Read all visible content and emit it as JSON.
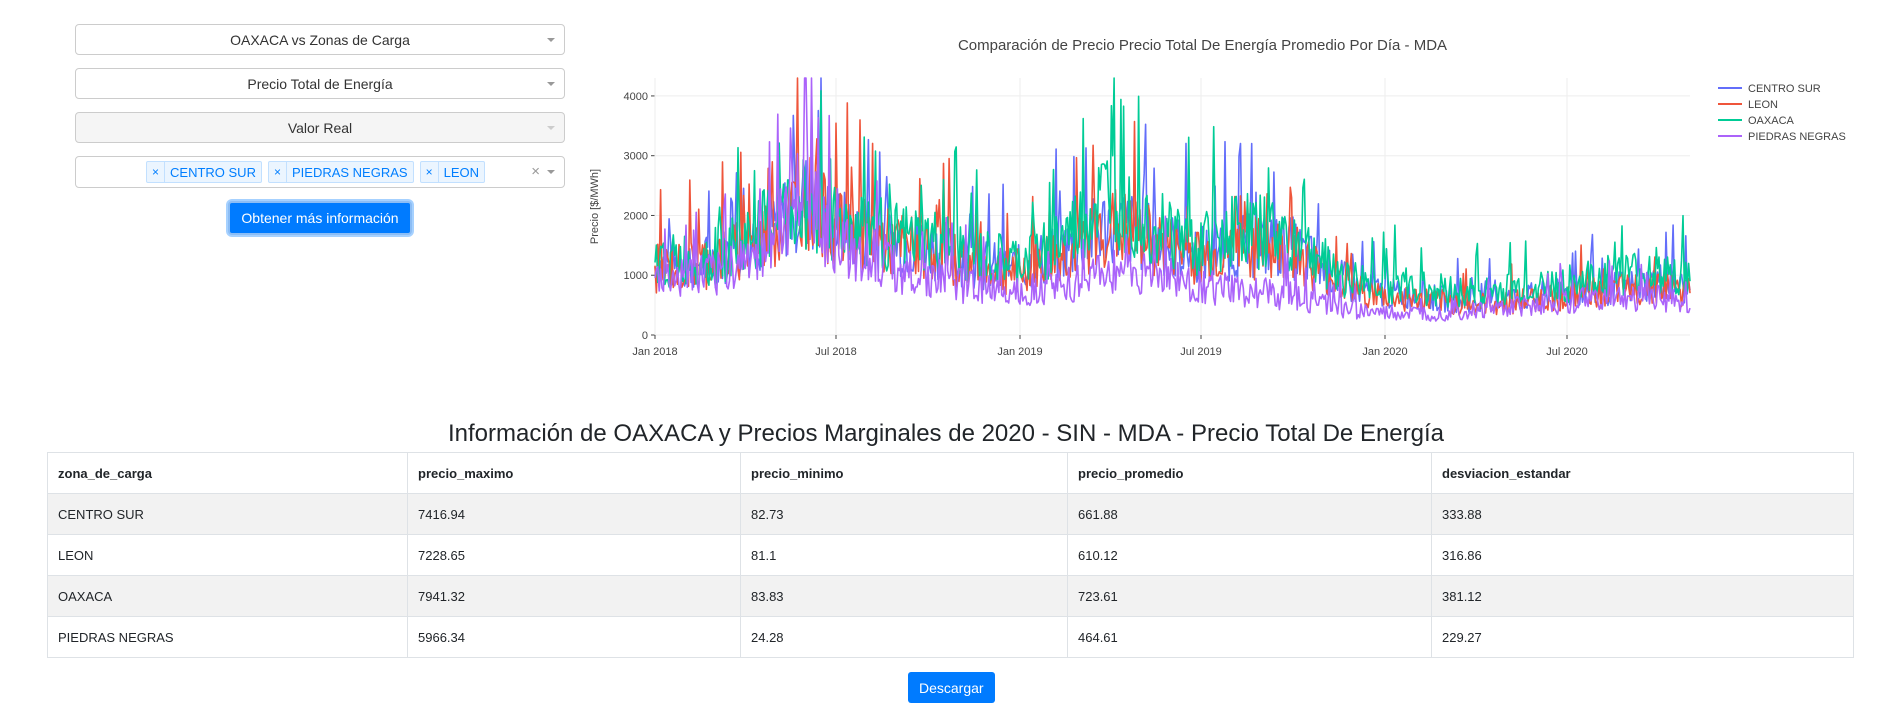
{
  "controls": {
    "region_select": "OAXACA vs Zonas de Carga",
    "price_select": "Precio Total de Energía",
    "value_select": "Valor Real",
    "zones": [
      "CENTRO SUR",
      "PIEDRAS NEGRAS",
      "LEON"
    ],
    "remove_glyph": "×",
    "clear_glyph": "×",
    "submit_label": "Obtener más información"
  },
  "chart_data": {
    "type": "line",
    "title": "Comparación de Precio Precio Total  De Energía Promedio Por Día - MDA",
    "xlabel": "",
    "ylabel": "Precio [$/MWh]",
    "x_range": [
      "2018-01-01",
      "2020-11-01"
    ],
    "x_ticks": [
      "Jan 2018",
      "Jul 2018",
      "Jan 2019",
      "Jul 2019",
      "Jan 2020",
      "Jul 2020"
    ],
    "ylim": [
      0,
      4300
    ],
    "y_ticks": [
      "0",
      "1000",
      "2000",
      "3000",
      "4000"
    ],
    "grid": true,
    "legend_position": "top-right",
    "series": [
      {
        "name": "CENTRO SUR",
        "color": "#636efa",
        "x": [
          "2018-01",
          "2018-02",
          "2018-03",
          "2018-04",
          "2018-05",
          "2018-06",
          "2018-07",
          "2018-08",
          "2018-09",
          "2018-10",
          "2018-11",
          "2018-12",
          "2019-01",
          "2019-02",
          "2019-03",
          "2019-04",
          "2019-05",
          "2019-06",
          "2019-07",
          "2019-08",
          "2019-09",
          "2019-10",
          "2019-11",
          "2019-12",
          "2020-01",
          "2020-02",
          "2020-03",
          "2020-04",
          "2020-05",
          "2020-06",
          "2020-07",
          "2020-08",
          "2020-09",
          "2020-10",
          "2020-11"
        ],
        "values": [
          1150,
          1200,
          1250,
          1500,
          1850,
          2250,
          1800,
          1700,
          1550,
          1500,
          1300,
          1150,
          1100,
          1350,
          1500,
          1900,
          1700,
          1500,
          1350,
          1450,
          1500,
          1450,
          1100,
          800,
          700,
          650,
          600,
          550,
          600,
          650,
          700,
          750,
          800,
          900,
          750
        ]
      },
      {
        "name": "LEON",
        "color": "#ef553b",
        "x": [
          "2018-01",
          "2018-02",
          "2018-03",
          "2018-04",
          "2018-05",
          "2018-06",
          "2018-07",
          "2018-08",
          "2018-09",
          "2018-10",
          "2018-11",
          "2018-12",
          "2019-01",
          "2019-02",
          "2019-03",
          "2019-04",
          "2019-05",
          "2019-06",
          "2019-07",
          "2019-08",
          "2019-09",
          "2019-10",
          "2019-11",
          "2019-12",
          "2020-01",
          "2020-02",
          "2020-03",
          "2020-04",
          "2020-05",
          "2020-06",
          "2020-07",
          "2020-08",
          "2020-09",
          "2020-10",
          "2020-11"
        ],
        "values": [
          1100,
          1150,
          1250,
          1450,
          1800,
          2300,
          1750,
          1650,
          1500,
          1450,
          1250,
          1100,
          1050,
          1300,
          1450,
          1850,
          1650,
          1450,
          1300,
          1400,
          1450,
          1400,
          1050,
          750,
          650,
          600,
          550,
          500,
          550,
          600,
          650,
          700,
          750,
          850,
          700
        ]
      },
      {
        "name": "OAXACA",
        "color": "#00cc96",
        "x": [
          "2018-01",
          "2018-02",
          "2018-03",
          "2018-04",
          "2018-05",
          "2018-06",
          "2018-07",
          "2018-08",
          "2018-09",
          "2018-10",
          "2018-11",
          "2018-12",
          "2019-01",
          "2019-02",
          "2019-03",
          "2019-04",
          "2019-05",
          "2019-06",
          "2019-07",
          "2019-08",
          "2019-09",
          "2019-10",
          "2019-11",
          "2019-12",
          "2020-01",
          "2020-02",
          "2020-03",
          "2020-04",
          "2020-05",
          "2020-06",
          "2020-07",
          "2020-08",
          "2020-09",
          "2020-10",
          "2020-11"
        ],
        "values": [
          1200,
          1250,
          1300,
          1550,
          1900,
          2200,
          1850,
          1750,
          1600,
          1550,
          1400,
          1250,
          1200,
          1500,
          1800,
          2400,
          2000,
          1700,
          1500,
          1800,
          1700,
          1600,
          1200,
          900,
          850,
          800,
          750,
          700,
          750,
          800,
          850,
          950,
          1000,
          1100,
          900
        ]
      },
      {
        "name": "PIEDRAS NEGRAS",
        "color": "#ab63fa",
        "x": [
          "2018-01",
          "2018-02",
          "2018-03",
          "2018-04",
          "2018-05",
          "2018-06",
          "2018-07",
          "2018-08",
          "2018-09",
          "2018-10",
          "2018-11",
          "2018-12",
          "2019-01",
          "2019-02",
          "2019-03",
          "2019-04",
          "2019-05",
          "2019-06",
          "2019-07",
          "2019-08",
          "2019-09",
          "2019-10",
          "2019-11",
          "2019-12",
          "2020-01",
          "2020-02",
          "2020-03",
          "2020-04",
          "2020-05",
          "2020-06",
          "2020-07",
          "2020-08",
          "2020-09",
          "2020-10",
          "2020-11"
        ],
        "values": [
          900,
          950,
          1000,
          1250,
          1700,
          2400,
          1500,
          1400,
          1100,
          950,
          850,
          800,
          750,
          800,
          850,
          1100,
          1000,
          950,
          800,
          750,
          700,
          650,
          500,
          400,
          350,
          350,
          350,
          400,
          450,
          500,
          550,
          600,
          600,
          650,
          450
        ]
      }
    ]
  },
  "results": {
    "title": "Información de OAXACA y Precios Marginales de 2020 - SIN - MDA - Precio Total De Energía",
    "columns": [
      "zona_de_carga",
      "precio_maximo",
      "precio_minimo",
      "precio_promedio",
      "desviacion_estandar"
    ],
    "rows": [
      [
        "CENTRO SUR",
        "7416.94",
        "82.73",
        "661.88",
        "333.88"
      ],
      [
        "LEON",
        "7228.65",
        "81.1",
        "610.12",
        "316.86"
      ],
      [
        "OAXACA",
        "7941.32",
        "83.83",
        "723.61",
        "381.12"
      ],
      [
        "PIEDRAS NEGRAS",
        "5966.34",
        "24.28",
        "464.61",
        "229.27"
      ]
    ],
    "download_label": "Descargar"
  }
}
